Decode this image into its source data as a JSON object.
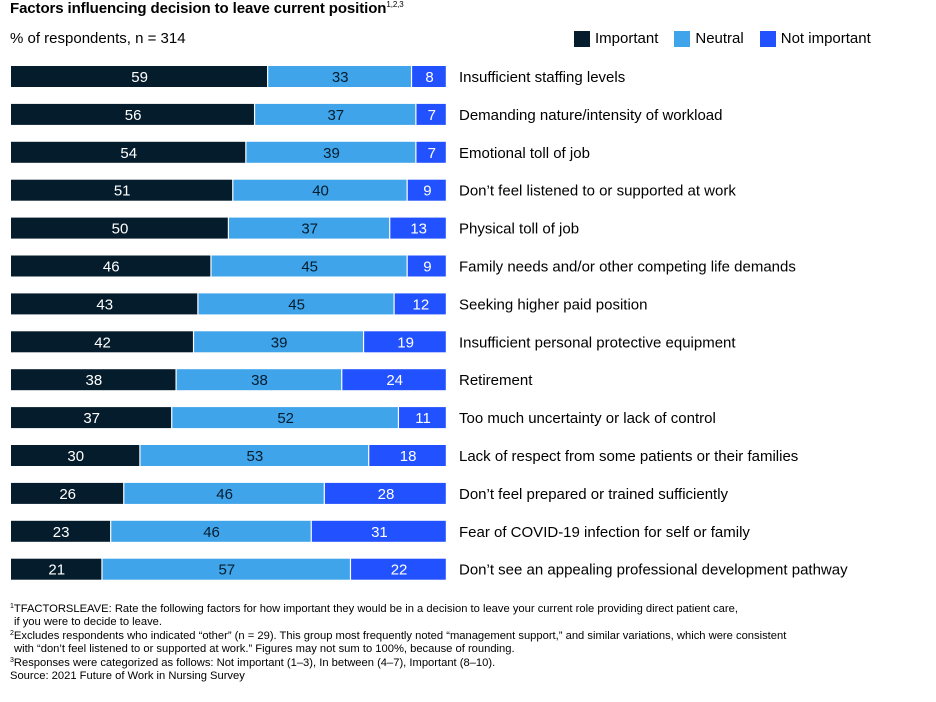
{
  "chart_data": {
    "type": "bar",
    "orientation": "horizontal",
    "stacked": true,
    "title": "Factors influencing decision to leave current position",
    "title_superscript": "1,2,3",
    "subtitle": "% of respondents, n = 314",
    "xlim": [
      0,
      100
    ],
    "grid": false,
    "legend_position": "top-right",
    "categories": [
      "Insufficient staffing levels",
      "Demanding nature/intensity of workload",
      "Emotional toll of job",
      "Don’t feel listened to or supported at work",
      "Physical toll of job",
      "Family needs and/or other competing life demands",
      "Seeking higher paid position",
      "Insufficient personal protective equipment",
      "Retirement",
      "Too much uncertainty or lack of control",
      "Lack of respect from some patients or their families",
      "Don’t feel prepared or trained sufficiently",
      "Fear of COVID-19 infection for self or family",
      "Don’t see an appealing professional development pathway"
    ],
    "series": [
      {
        "name": "Important",
        "color": "#051c2c",
        "label_color": "#ffffff",
        "values": [
          59,
          56,
          54,
          51,
          50,
          46,
          43,
          42,
          38,
          37,
          30,
          26,
          23,
          21
        ]
      },
      {
        "name": "Neutral",
        "color": "#3fa4ea",
        "label_color": "#051c2c",
        "values": [
          33,
          37,
          39,
          40,
          37,
          45,
          45,
          39,
          38,
          52,
          53,
          46,
          46,
          57
        ]
      },
      {
        "name": "Not important",
        "color": "#2251ff",
        "label_color": "#ffffff",
        "values": [
          8,
          7,
          7,
          9,
          13,
          9,
          12,
          19,
          24,
          11,
          18,
          28,
          31,
          22
        ]
      }
    ]
  },
  "footnotes": {
    "fn1_mark": "1",
    "fn1_line1": "TFACTORSLEAVE: Rate the following factors for how important they would be in a decision to leave your current role providing direct patient care,",
    "fn1_line2": "if you were to decide to leave.",
    "fn2_mark": "2",
    "fn2_line1": "Excludes respondents who indicated “other” (n = 29). This group most frequently noted “management support,” and similar variations, which were consistent",
    "fn2_line2": "with “don’t feel listened to or supported at work.” Figures may not sum to 100%, because of rounding.",
    "fn3_mark": "3",
    "fn3_line1": "Responses were categorized as follows: Not important (1–3), In between (4–7), Important (8–10).",
    "source": "Source: 2021 Future of Work in Nursing Survey"
  }
}
